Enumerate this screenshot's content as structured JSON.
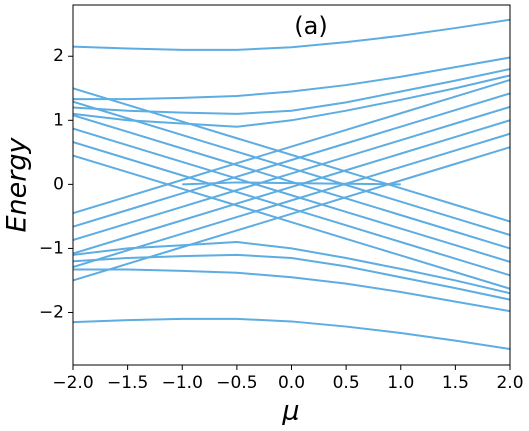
{
  "chart_data": {
    "type": "line",
    "annotation": "(a)",
    "xlabel": "μ",
    "ylabel": "Energy",
    "color": "#5dade2",
    "x": [
      -2,
      -1.5,
      -1,
      -0.5,
      0,
      0.5,
      1,
      1.5,
      2
    ],
    "series": [
      {
        "values": [
          0.45,
          0.19,
          -0.07,
          -0.33,
          -0.59,
          -0.85,
          -1.11,
          -1.37,
          -1.63
        ]
      },
      {
        "values": [
          0.66,
          0.4,
          0.14,
          -0.12,
          -0.38,
          -0.64,
          -0.9,
          -1.16,
          -1.42
        ]
      },
      {
        "values": [
          0.87,
          0.61,
          0.35,
          0.09,
          -0.17,
          -0.43,
          -0.69,
          -0.95,
          -1.21
        ]
      },
      {
        "values": [
          1.08,
          0.82,
          0.56,
          0.3,
          0.04,
          -0.22,
          -0.48,
          -0.74,
          -1.0
        ]
      },
      {
        "values": [
          1.29,
          1.03,
          0.77,
          0.51,
          0.25,
          -0.01,
          -0.27,
          -0.53,
          -0.79
        ]
      },
      {
        "values": [
          1.5,
          1.24,
          0.98,
          0.72,
          0.46,
          0.2,
          -0.06,
          -0.32,
          -0.58
        ]
      },
      {
        "values": [
          -0.45,
          -0.19,
          0.07,
          0.33,
          0.59,
          0.85,
          1.11,
          1.37,
          1.63
        ]
      },
      {
        "values": [
          -0.66,
          -0.4,
          -0.14,
          0.12,
          0.38,
          0.64,
          0.9,
          1.16,
          1.42
        ]
      },
      {
        "values": [
          -0.87,
          -0.61,
          -0.35,
          -0.09,
          0.17,
          0.43,
          0.69,
          0.95,
          1.21
        ]
      },
      {
        "values": [
          -1.08,
          -0.82,
          -0.56,
          -0.3,
          -0.04,
          0.22,
          0.48,
          0.74,
          1.0
        ]
      },
      {
        "values": [
          -1.29,
          -1.03,
          -0.77,
          -0.51,
          -0.25,
          0.01,
          0.27,
          0.53,
          0.79
        ]
      },
      {
        "values": [
          -1.5,
          -1.24,
          -0.98,
          -0.72,
          -0.46,
          -0.2,
          0.06,
          0.32,
          0.58
        ]
      },
      {
        "values": [
          2.15,
          2.12,
          2.1,
          2.1,
          2.14,
          2.22,
          2.32,
          2.44,
          2.57
        ]
      },
      {
        "values": [
          1.33,
          1.33,
          1.35,
          1.38,
          1.45,
          1.55,
          1.68,
          1.83,
          1.98
        ]
      },
      {
        "values": [
          1.2,
          1.15,
          1.12,
          1.1,
          1.15,
          1.28,
          1.45,
          1.62,
          1.8
        ]
      },
      {
        "values": [
          1.1,
          1.0,
          0.95,
          0.9,
          1.0,
          1.15,
          1.32,
          1.5,
          1.7
        ]
      },
      {
        "values": [
          null,
          null,
          0.0,
          0.03,
          0.02,
          0.01,
          0.0,
          null,
          null
        ]
      },
      {
        "values": [
          -2.15,
          -2.12,
          -2.1,
          -2.1,
          -2.14,
          -2.22,
          -2.32,
          -2.44,
          -2.57
        ]
      },
      {
        "values": [
          -1.33,
          -1.33,
          -1.35,
          -1.38,
          -1.45,
          -1.55,
          -1.68,
          -1.83,
          -1.98
        ]
      },
      {
        "values": [
          -1.2,
          -1.15,
          -1.12,
          -1.1,
          -1.15,
          -1.28,
          -1.45,
          -1.62,
          -1.8
        ]
      },
      {
        "values": [
          -1.1,
          -1.0,
          -0.95,
          -0.9,
          -1.0,
          -1.15,
          -1.32,
          -1.5,
          -1.7
        ]
      }
    ],
    "xlim": [
      -2,
      2
    ],
    "ylim": [
      -2.82,
      2.8
    ],
    "xticks": [
      {
        "value": -2,
        "label": "−2.0"
      },
      {
        "value": -1.5,
        "label": "−1.5"
      },
      {
        "value": -1,
        "label": "−1.0"
      },
      {
        "value": -0.5,
        "label": "−0.5"
      },
      {
        "value": 0,
        "label": "0.0"
      },
      {
        "value": 0.5,
        "label": "0.5"
      },
      {
        "value": 1,
        "label": "1.0"
      },
      {
        "value": 1.5,
        "label": "1.5"
      },
      {
        "value": 2,
        "label": "2.0"
      }
    ],
    "yticks": [
      {
        "value": -2,
        "label": "−2"
      },
      {
        "value": -1,
        "label": "−1"
      },
      0,
      1,
      2
    ],
    "grid": false
  }
}
